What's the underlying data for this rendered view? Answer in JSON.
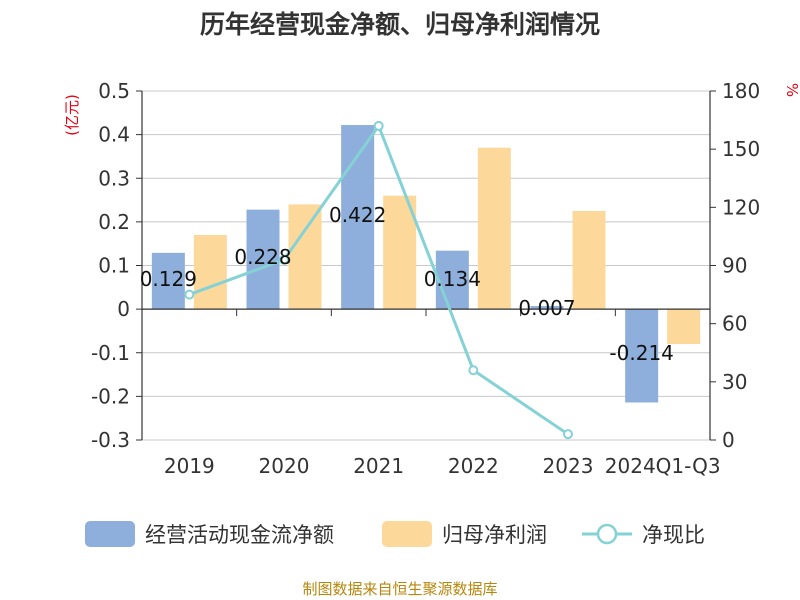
{
  "chart_data": {
    "type": "bar",
    "title": "历年经营现金净额、归母净利润情况",
    "categories": [
      "2019",
      "2020",
      "2021",
      "2022",
      "2023",
      "2024Q1-Q3"
    ],
    "series": [
      {
        "name": "经营活动现金流净额",
        "kind": "bar",
        "axis": "left",
        "color": "#8eaedb",
        "values": [
          0.129,
          0.228,
          0.422,
          0.134,
          0.007,
          -0.214
        ],
        "labels": [
          "0.129",
          "0.228",
          "0.422",
          "0.134",
          "0.007",
          "-0.214"
        ]
      },
      {
        "name": "归母净利润",
        "kind": "bar",
        "axis": "left",
        "color": "#fdd89b",
        "values": [
          0.17,
          0.24,
          0.26,
          0.37,
          0.225,
          -0.08
        ]
      },
      {
        "name": "净现比",
        "kind": "line",
        "axis": "right",
        "color": "#84d2d6",
        "values": [
          75,
          93,
          162,
          36,
          3,
          null
        ]
      }
    ],
    "left_axis": {
      "unit_label": "(亿元)",
      "min": -0.3,
      "max": 0.5,
      "ticks": [
        "0.5",
        "0.4",
        "0.3",
        "0.2",
        "0.1",
        "0",
        "-0.1",
        "-0.2",
        "-0.3"
      ]
    },
    "right_axis": {
      "unit_label": "%",
      "min": 0,
      "max": 180,
      "ticks": [
        "180",
        "150",
        "120",
        "90",
        "60",
        "30",
        "0"
      ]
    },
    "grid": true,
    "legend_position": "bottom"
  },
  "source": "制图数据来自恒生聚源数据库"
}
